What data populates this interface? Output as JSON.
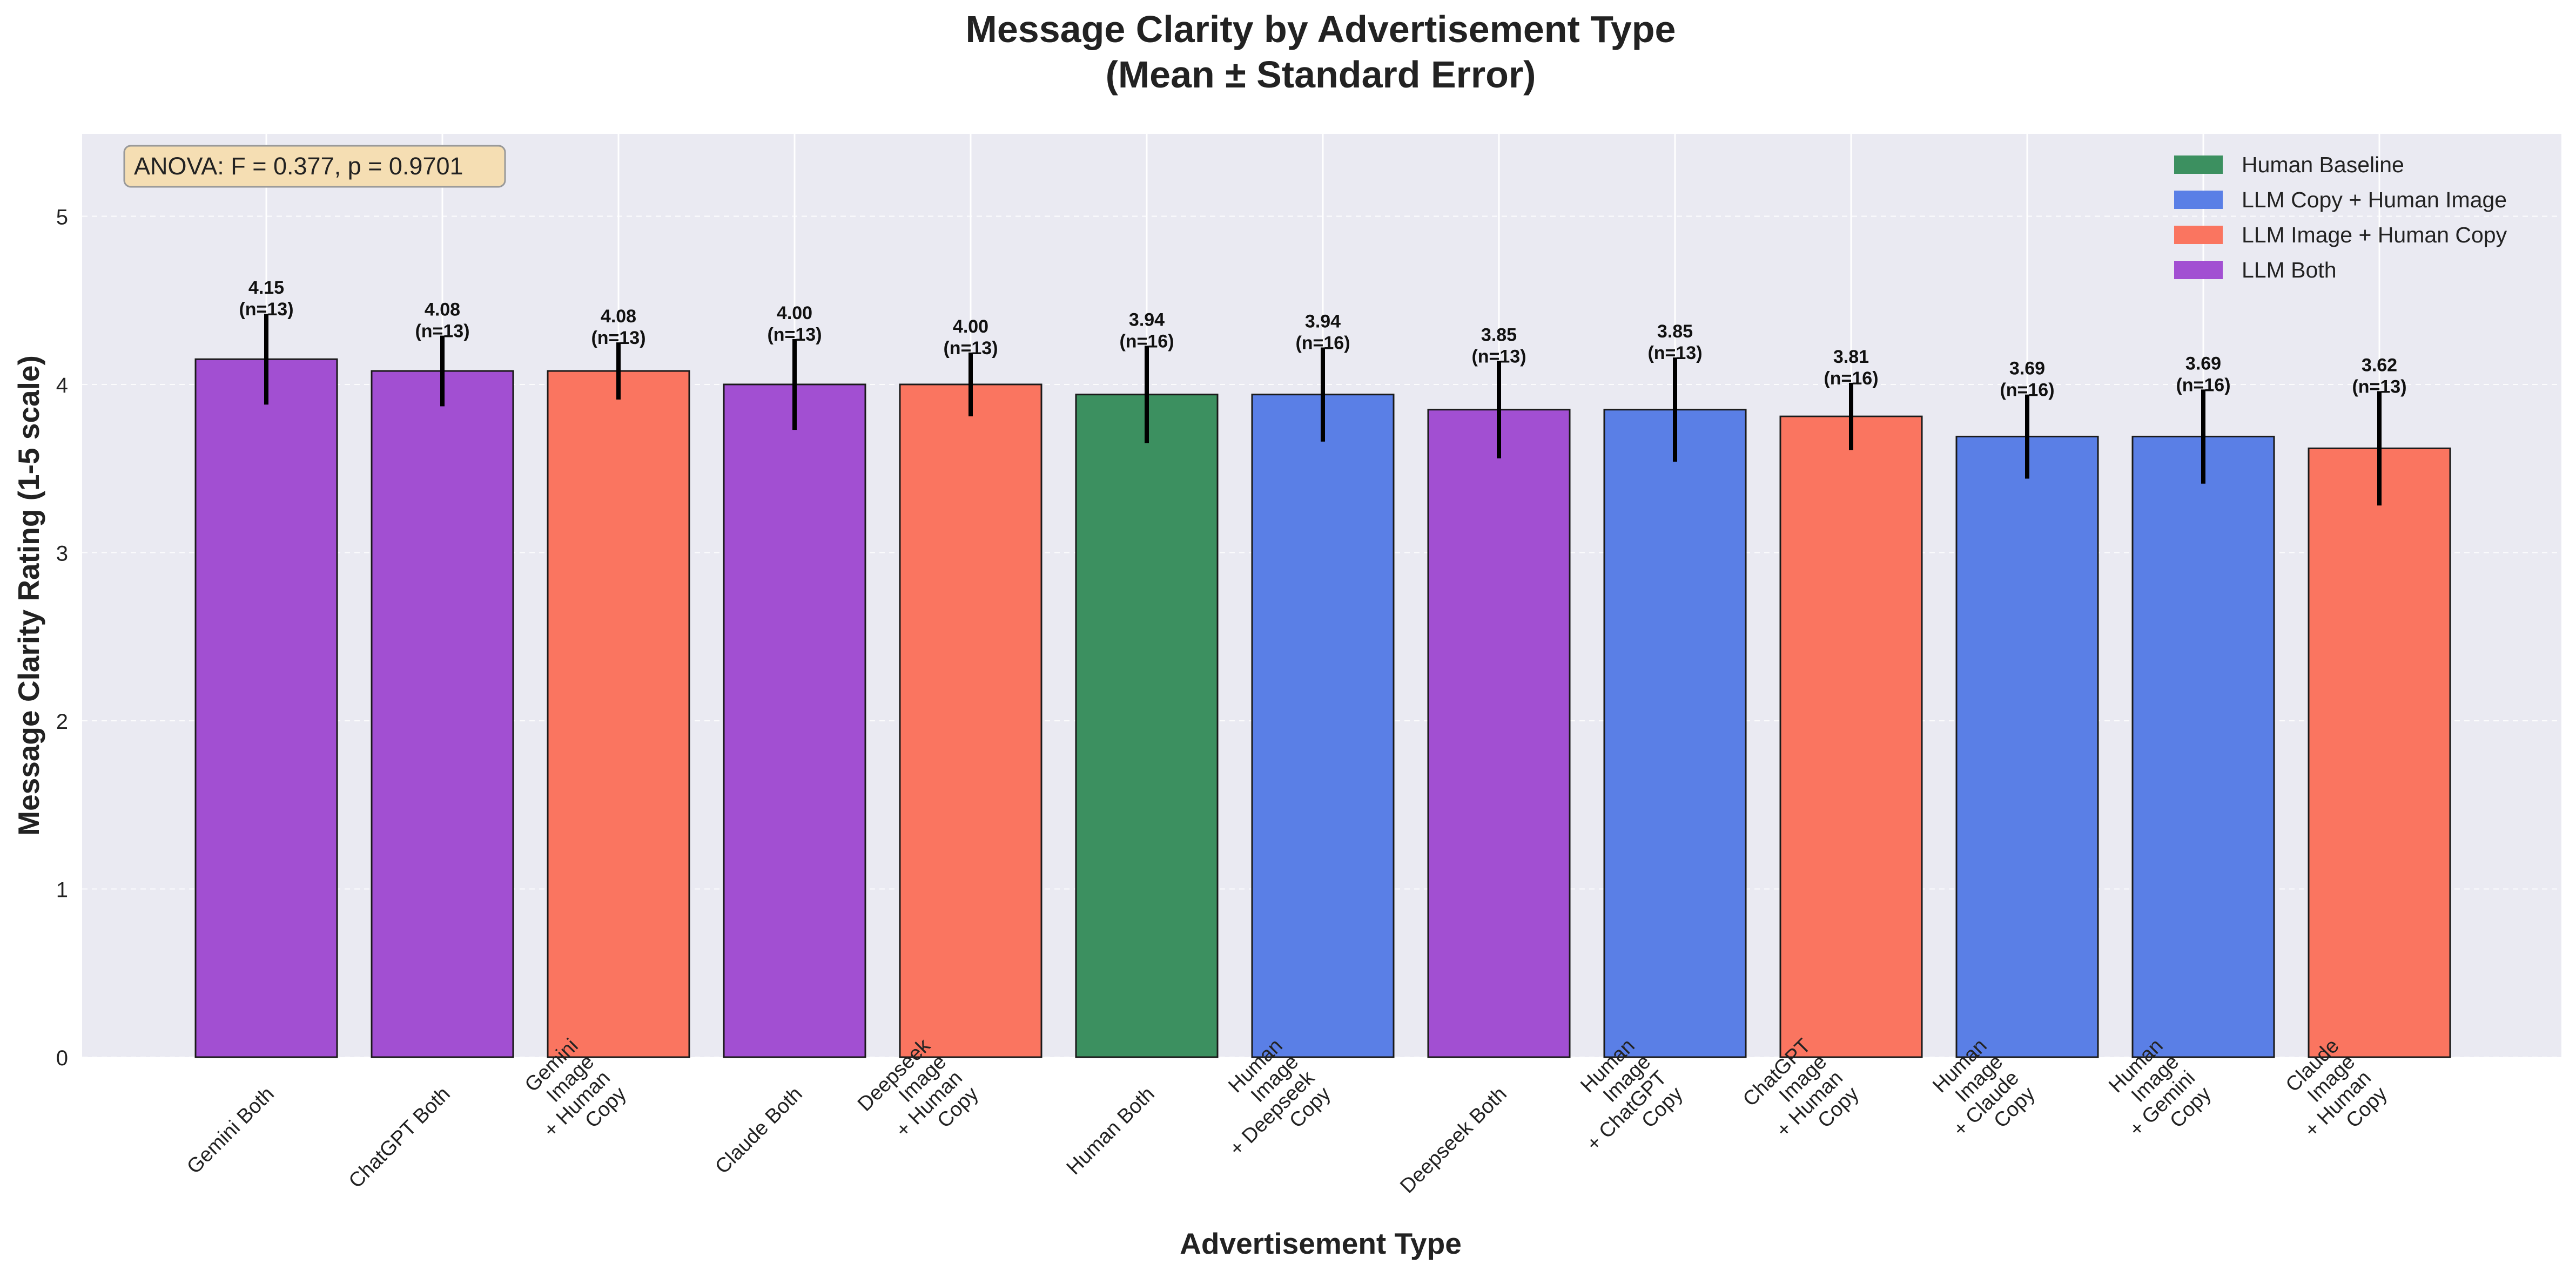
{
  "chart_data": {
    "type": "bar",
    "title": "Message Clarity by Advertisement Type",
    "subtitle": "(Mean ± Standard Error)",
    "xlabel": "Advertisement Type",
    "ylabel": "Message Clarity Rating (1-5 scale)",
    "ylim": [
      0,
      5.5
    ],
    "yticks": [
      "0",
      "1",
      "2",
      "3",
      "4",
      "5"
    ],
    "grid": true,
    "legend_position": "top-right",
    "annotation": "ANOVA: F = 0.377, p = 0.9701",
    "groups": [
      {
        "name": "Human Baseline",
        "color": "#3c9060"
      },
      {
        "name": "LLM Copy + Human Image",
        "color": "#5a7fe6"
      },
      {
        "name": "LLM Image + Human Copy",
        "color": "#fa7560"
      },
      {
        "name": "LLM Both",
        "color": "#a24fd2"
      }
    ],
    "bars": [
      {
        "category": [
          "Gemini Both"
        ],
        "value": 4.15,
        "se": 0.27,
        "value_label": "4.15",
        "n_label": "(n=13)",
        "group": 3
      },
      {
        "category": [
          "ChatGPT Both"
        ],
        "value": 4.08,
        "se": 0.21,
        "value_label": "4.08",
        "n_label": "(n=13)",
        "group": 3
      },
      {
        "category": [
          "Gemini",
          "Image",
          "+ Human",
          "Copy"
        ],
        "value": 4.08,
        "se": 0.17,
        "value_label": "4.08",
        "n_label": "(n=13)",
        "group": 2
      },
      {
        "category": [
          "Claude Both"
        ],
        "value": 4.0,
        "se": 0.27,
        "value_label": "4.00",
        "n_label": "(n=13)",
        "group": 3
      },
      {
        "category": [
          "Deepseek",
          "Image",
          "+ Human",
          "Copy"
        ],
        "value": 4.0,
        "se": 0.19,
        "value_label": "4.00",
        "n_label": "(n=13)",
        "group": 2
      },
      {
        "category": [
          "Human Both"
        ],
        "value": 3.94,
        "se": 0.29,
        "value_label": "3.94",
        "n_label": "(n=16)",
        "group": 0
      },
      {
        "category": [
          "Human",
          "Image",
          "+ Deepseek",
          "Copy"
        ],
        "value": 3.94,
        "se": 0.28,
        "value_label": "3.94",
        "n_label": "(n=16)",
        "group": 1
      },
      {
        "category": [
          "Deepseek Both"
        ],
        "value": 3.85,
        "se": 0.29,
        "value_label": "3.85",
        "n_label": "(n=13)",
        "group": 3
      },
      {
        "category": [
          "Human",
          "Image",
          "+ ChatGPT",
          "Copy"
        ],
        "value": 3.85,
        "se": 0.31,
        "value_label": "3.85",
        "n_label": "(n=13)",
        "group": 1
      },
      {
        "category": [
          "ChatGPT",
          "Image",
          "+ Human",
          "Copy"
        ],
        "value": 3.81,
        "se": 0.2,
        "value_label": "3.81",
        "n_label": "(n=16)",
        "group": 2
      },
      {
        "category": [
          "Human",
          "Image",
          "+ Claude",
          "Copy"
        ],
        "value": 3.69,
        "se": 0.25,
        "value_label": "3.69",
        "n_label": "(n=16)",
        "group": 1
      },
      {
        "category": [
          "Human",
          "Image",
          "+ Gemini",
          "Copy"
        ],
        "value": 3.69,
        "se": 0.28,
        "value_label": "3.69",
        "n_label": "(n=16)",
        "group": 1
      },
      {
        "category": [
          "Claude",
          "Image",
          "+ Human",
          "Copy"
        ],
        "value": 3.62,
        "se": 0.34,
        "value_label": "3.62",
        "n_label": "(n=13)",
        "group": 2
      }
    ],
    "colors": {
      "plot_background": "#eaeaf2",
      "grid": "#ffffff",
      "annotation_fill": "#f5deb3",
      "error_bar": "#000000",
      "bar_edge": "#1a1a1a"
    }
  }
}
